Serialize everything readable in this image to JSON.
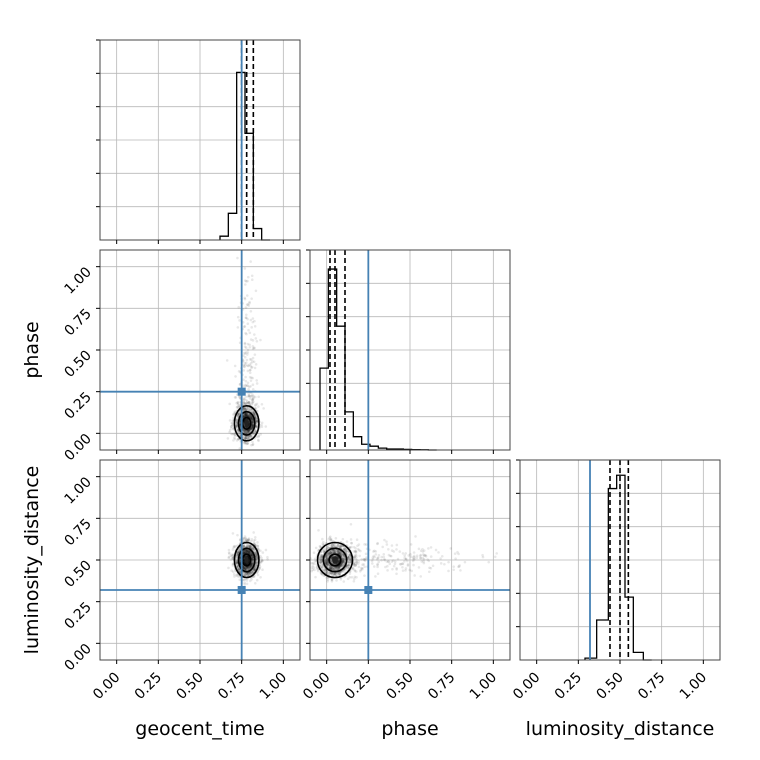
{
  "chart_data": {
    "type": "corner",
    "parameters": [
      "geocent_time",
      "phase",
      "luminosity_distance"
    ],
    "axis_range": [
      -0.1,
      1.1
    ],
    "tick_values": [
      0.0,
      0.25,
      0.5,
      0.75,
      1.0
    ],
    "tick_labels": [
      "0.00",
      "0.25",
      "0.50",
      "0.75",
      "1.00"
    ],
    "truths": {
      "geocent_time": 0.75,
      "phase": 0.25,
      "luminosity_distance": 0.32
    },
    "colors": {
      "truth": "#4682b4",
      "hist": "#000000",
      "grid": "#b8b8b8"
    },
    "histograms": [
      {
        "parameter": "geocent_time",
        "bin_edges": [
          0.62,
          0.67,
          0.72,
          0.77,
          0.82,
          0.87,
          0.92
        ],
        "counts": [
          0.02,
          0.14,
          0.88,
          0.56,
          0.06,
          0.0
        ],
        "ymax": 1.0,
        "quantiles": [
          0.75,
          0.78,
          0.82
        ]
      },
      {
        "parameter": "phase",
        "bin_edges": [
          -0.04,
          0.01,
          0.06,
          0.11,
          0.16,
          0.21,
          0.26,
          0.31,
          0.36,
          0.41,
          0.46,
          0.51,
          0.56,
          0.61,
          0.66
        ],
        "counts": [
          0.43,
          0.95,
          0.65,
          0.2,
          0.07,
          0.03,
          0.02,
          0.01,
          0.005,
          0.005,
          0.003,
          0.002,
          0.001,
          0.0
        ],
        "ymax": 1.0,
        "quantiles": [
          0.02,
          0.05,
          0.11
        ]
      },
      {
        "parameter": "luminosity_distance",
        "bin_edges": [
          0.29,
          0.36,
          0.43,
          0.48,
          0.53,
          0.58,
          0.64,
          0.69
        ],
        "counts": [
          0.01,
          0.21,
          0.9,
          0.97,
          0.33,
          0.04,
          0.0
        ],
        "ymax": 1.0,
        "quantiles": [
          0.44,
          0.5,
          0.55
        ]
      }
    ],
    "scatter_panels": [
      {
        "x": "geocent_time",
        "y": "phase",
        "center": [
          0.78,
          0.06
        ],
        "spread": [
          0.035,
          0.05
        ],
        "tail_direction": "phase"
      },
      {
        "x": "geocent_time",
        "y": "luminosity_distance",
        "center": [
          0.78,
          0.5
        ],
        "spread": [
          0.035,
          0.05
        ],
        "tail_direction": "none"
      },
      {
        "x": "phase",
        "y": "luminosity_distance",
        "center": [
          0.05,
          0.5
        ],
        "spread": [
          0.05,
          0.05
        ],
        "tail_direction": "phase"
      }
    ]
  }
}
